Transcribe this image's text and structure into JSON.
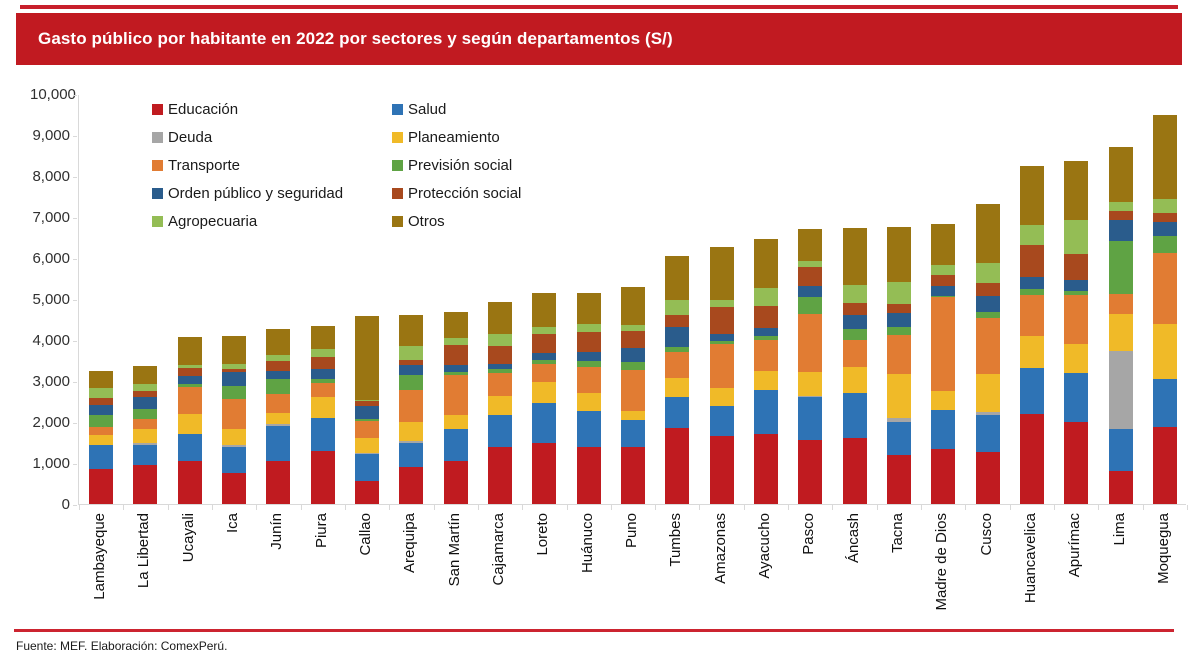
{
  "title": "Gasto público por habitante en 2022 por sectores y según departamentos (S/)",
  "footer": "Fuente: MEF. Elaboración: ComexPerú.",
  "colors": {
    "banner_red": "#C11A21",
    "rule_red": "#C8202B",
    "axis_gray": "#D9D9D9"
  },
  "chart_data": {
    "type": "bar",
    "stacked": true,
    "grid": false,
    "legend_position": "inside-top-left",
    "ylim": [
      0,
      10000
    ],
    "ytick_step": 1000,
    "ytick_labels": [
      "0",
      "1,000",
      "2,000",
      "3,000",
      "4,000",
      "5,000",
      "6,000",
      "7,000",
      "8,000",
      "9,000",
      "10,000"
    ],
    "categories": [
      "Lambayeque",
      "La Libertad",
      "Ucayali",
      "Ica",
      "Junín",
      "Piura",
      "Callao",
      "Arequipa",
      "San Martín",
      "Cajamarca",
      "Loreto",
      "Huánuco",
      "Puno",
      "Tumbes",
      "Amazonas",
      "Ayacucho",
      "Pasco",
      "Áncash",
      "Tacna",
      "Madre de Dios",
      "Cusco",
      "Huancavelica",
      "Apurímac",
      "Lima",
      "Moquegua"
    ],
    "legend_order": [
      "Educación",
      "Salud",
      "Deuda",
      "Planeamiento",
      "Transporte",
      "Previsión social",
      "Orden público y seguridad",
      "Protección social",
      "Agropecuaria",
      "Otros"
    ],
    "series": [
      {
        "name": "Educación",
        "color": "#C01B20",
        "values": [
          850,
          950,
          1050,
          750,
          1050,
          1300,
          560,
          900,
          1050,
          1400,
          1480,
          1400,
          1400,
          1850,
          1650,
          1700,
          1550,
          1600,
          1200,
          1350,
          1280,
          2200,
          2000,
          800,
          1870
        ]
      },
      {
        "name": "Salud",
        "color": "#2E73B5",
        "values": [
          600,
          490,
          650,
          630,
          860,
          800,
          650,
          590,
          780,
          770,
          990,
          870,
          650,
          770,
          750,
          1080,
          1050,
          1100,
          810,
          940,
          900,
          1120,
          1200,
          1030,
          1180
        ]
      },
      {
        "name": "Deuda",
        "color": "#A6A6A6",
        "values": [
          0,
          50,
          0,
          60,
          40,
          0,
          40,
          40,
          0,
          0,
          0,
          0,
          0,
          0,
          0,
          0,
          30,
          0,
          100,
          0,
          70,
          0,
          0,
          1910,
          0
        ]
      },
      {
        "name": "Planeamiento",
        "color": "#F0BA28",
        "values": [
          230,
          340,
          500,
          390,
          270,
          500,
          370,
          470,
          340,
          470,
          500,
          450,
          230,
          450,
          420,
          470,
          600,
          650,
          1070,
          470,
          910,
          790,
          710,
          890,
          1350
        ]
      },
      {
        "name": "Transporte",
        "color": "#E17C33",
        "values": [
          190,
          240,
          650,
          730,
          460,
          340,
          400,
          770,
          980,
          550,
          450,
          630,
          990,
          650,
          1080,
          750,
          1400,
          650,
          940,
          2280,
          1380,
          980,
          1180,
          490,
          1715
        ]
      },
      {
        "name": "Previsión social",
        "color": "#5FA344",
        "values": [
          310,
          260,
          80,
          310,
          380,
          120,
          60,
          380,
          60,
          100,
          100,
          140,
          200,
          110,
          70,
          110,
          410,
          270,
          200,
          40,
          140,
          150,
          100,
          1300,
          430
        ]
      },
      {
        "name": "Orden público y seguridad",
        "color": "#2A5C8C",
        "values": [
          230,
          270,
          200,
          340,
          190,
          240,
          310,
          250,
          190,
          120,
          160,
          210,
          330,
          500,
          180,
          190,
          270,
          330,
          330,
          240,
          390,
          300,
          270,
          510,
          340
        ]
      },
      {
        "name": "Protección social",
        "color": "#A8491E",
        "values": [
          180,
          160,
          180,
          80,
          240,
          280,
          120,
          120,
          480,
          450,
          460,
          490,
          420,
          280,
          660,
          540,
          460,
          300,
          230,
          270,
          330,
          770,
          650,
          210,
          205
        ]
      },
      {
        "name": "Agropecuaria",
        "color": "#94BD55",
        "values": [
          230,
          180,
          90,
          120,
          140,
          200,
          30,
          340,
          160,
          280,
          170,
          200,
          150,
          370,
          160,
          430,
          160,
          450,
          530,
          240,
          470,
          490,
          810,
          220,
          350
        ]
      },
      {
        "name": "Otros",
        "color": "#9A7512",
        "values": [
          430,
          430,
          680,
          680,
          640,
          570,
          2060,
          760,
          640,
          780,
          850,
          770,
          930,
          1070,
          1300,
          1200,
          770,
          1390,
          1350,
          990,
          1460,
          1450,
          1440,
          1340,
          2060
        ]
      }
    ]
  }
}
